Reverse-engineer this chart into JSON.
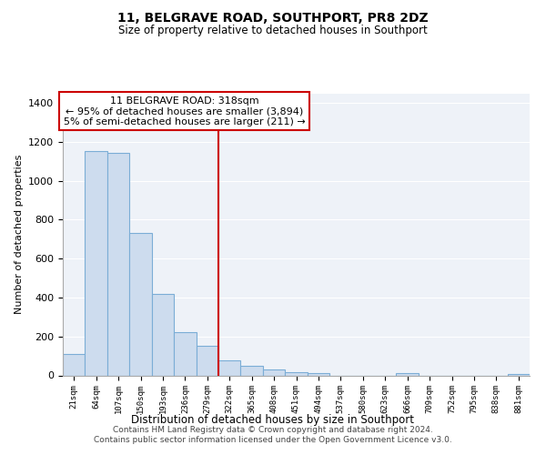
{
  "title": "11, BELGRAVE ROAD, SOUTHPORT, PR8 2DZ",
  "subtitle": "Size of property relative to detached houses in Southport",
  "xlabel": "Distribution of detached houses by size in Southport",
  "ylabel": "Number of detached properties",
  "bar_labels": [
    "21sqm",
    "64sqm",
    "107sqm",
    "150sqm",
    "193sqm",
    "236sqm",
    "279sqm",
    "322sqm",
    "365sqm",
    "408sqm",
    "451sqm",
    "494sqm",
    "537sqm",
    "580sqm",
    "623sqm",
    "666sqm",
    "709sqm",
    "752sqm",
    "795sqm",
    "838sqm",
    "881sqm"
  ],
  "bar_values": [
    110,
    1155,
    1145,
    730,
    420,
    220,
    150,
    75,
    50,
    32,
    15,
    12,
    0,
    0,
    0,
    10,
    0,
    0,
    0,
    0,
    5
  ],
  "bar_color": "#cddcee",
  "bar_edge_color": "#7badd6",
  "vline_x": 7.0,
  "vline_color": "#cc0000",
  "annotation_line1": "11 BELGRAVE ROAD: 318sqm",
  "annotation_line2": "← 95% of detached houses are smaller (3,894)",
  "annotation_line3": "5% of semi-detached houses are larger (211) →",
  "annotation_box_color": "#ffffff",
  "annotation_box_edge": "#cc0000",
  "ylim": [
    0,
    1450
  ],
  "yticks": [
    0,
    200,
    400,
    600,
    800,
    1000,
    1200,
    1400
  ],
  "footer_line1": "Contains HM Land Registry data © Crown copyright and database right 2024.",
  "footer_line2": "Contains public sector information licensed under the Open Government Licence v3.0.",
  "background_color": "#ffffff",
  "plot_bg_color": "#eef2f8",
  "grid_color": "#ffffff"
}
